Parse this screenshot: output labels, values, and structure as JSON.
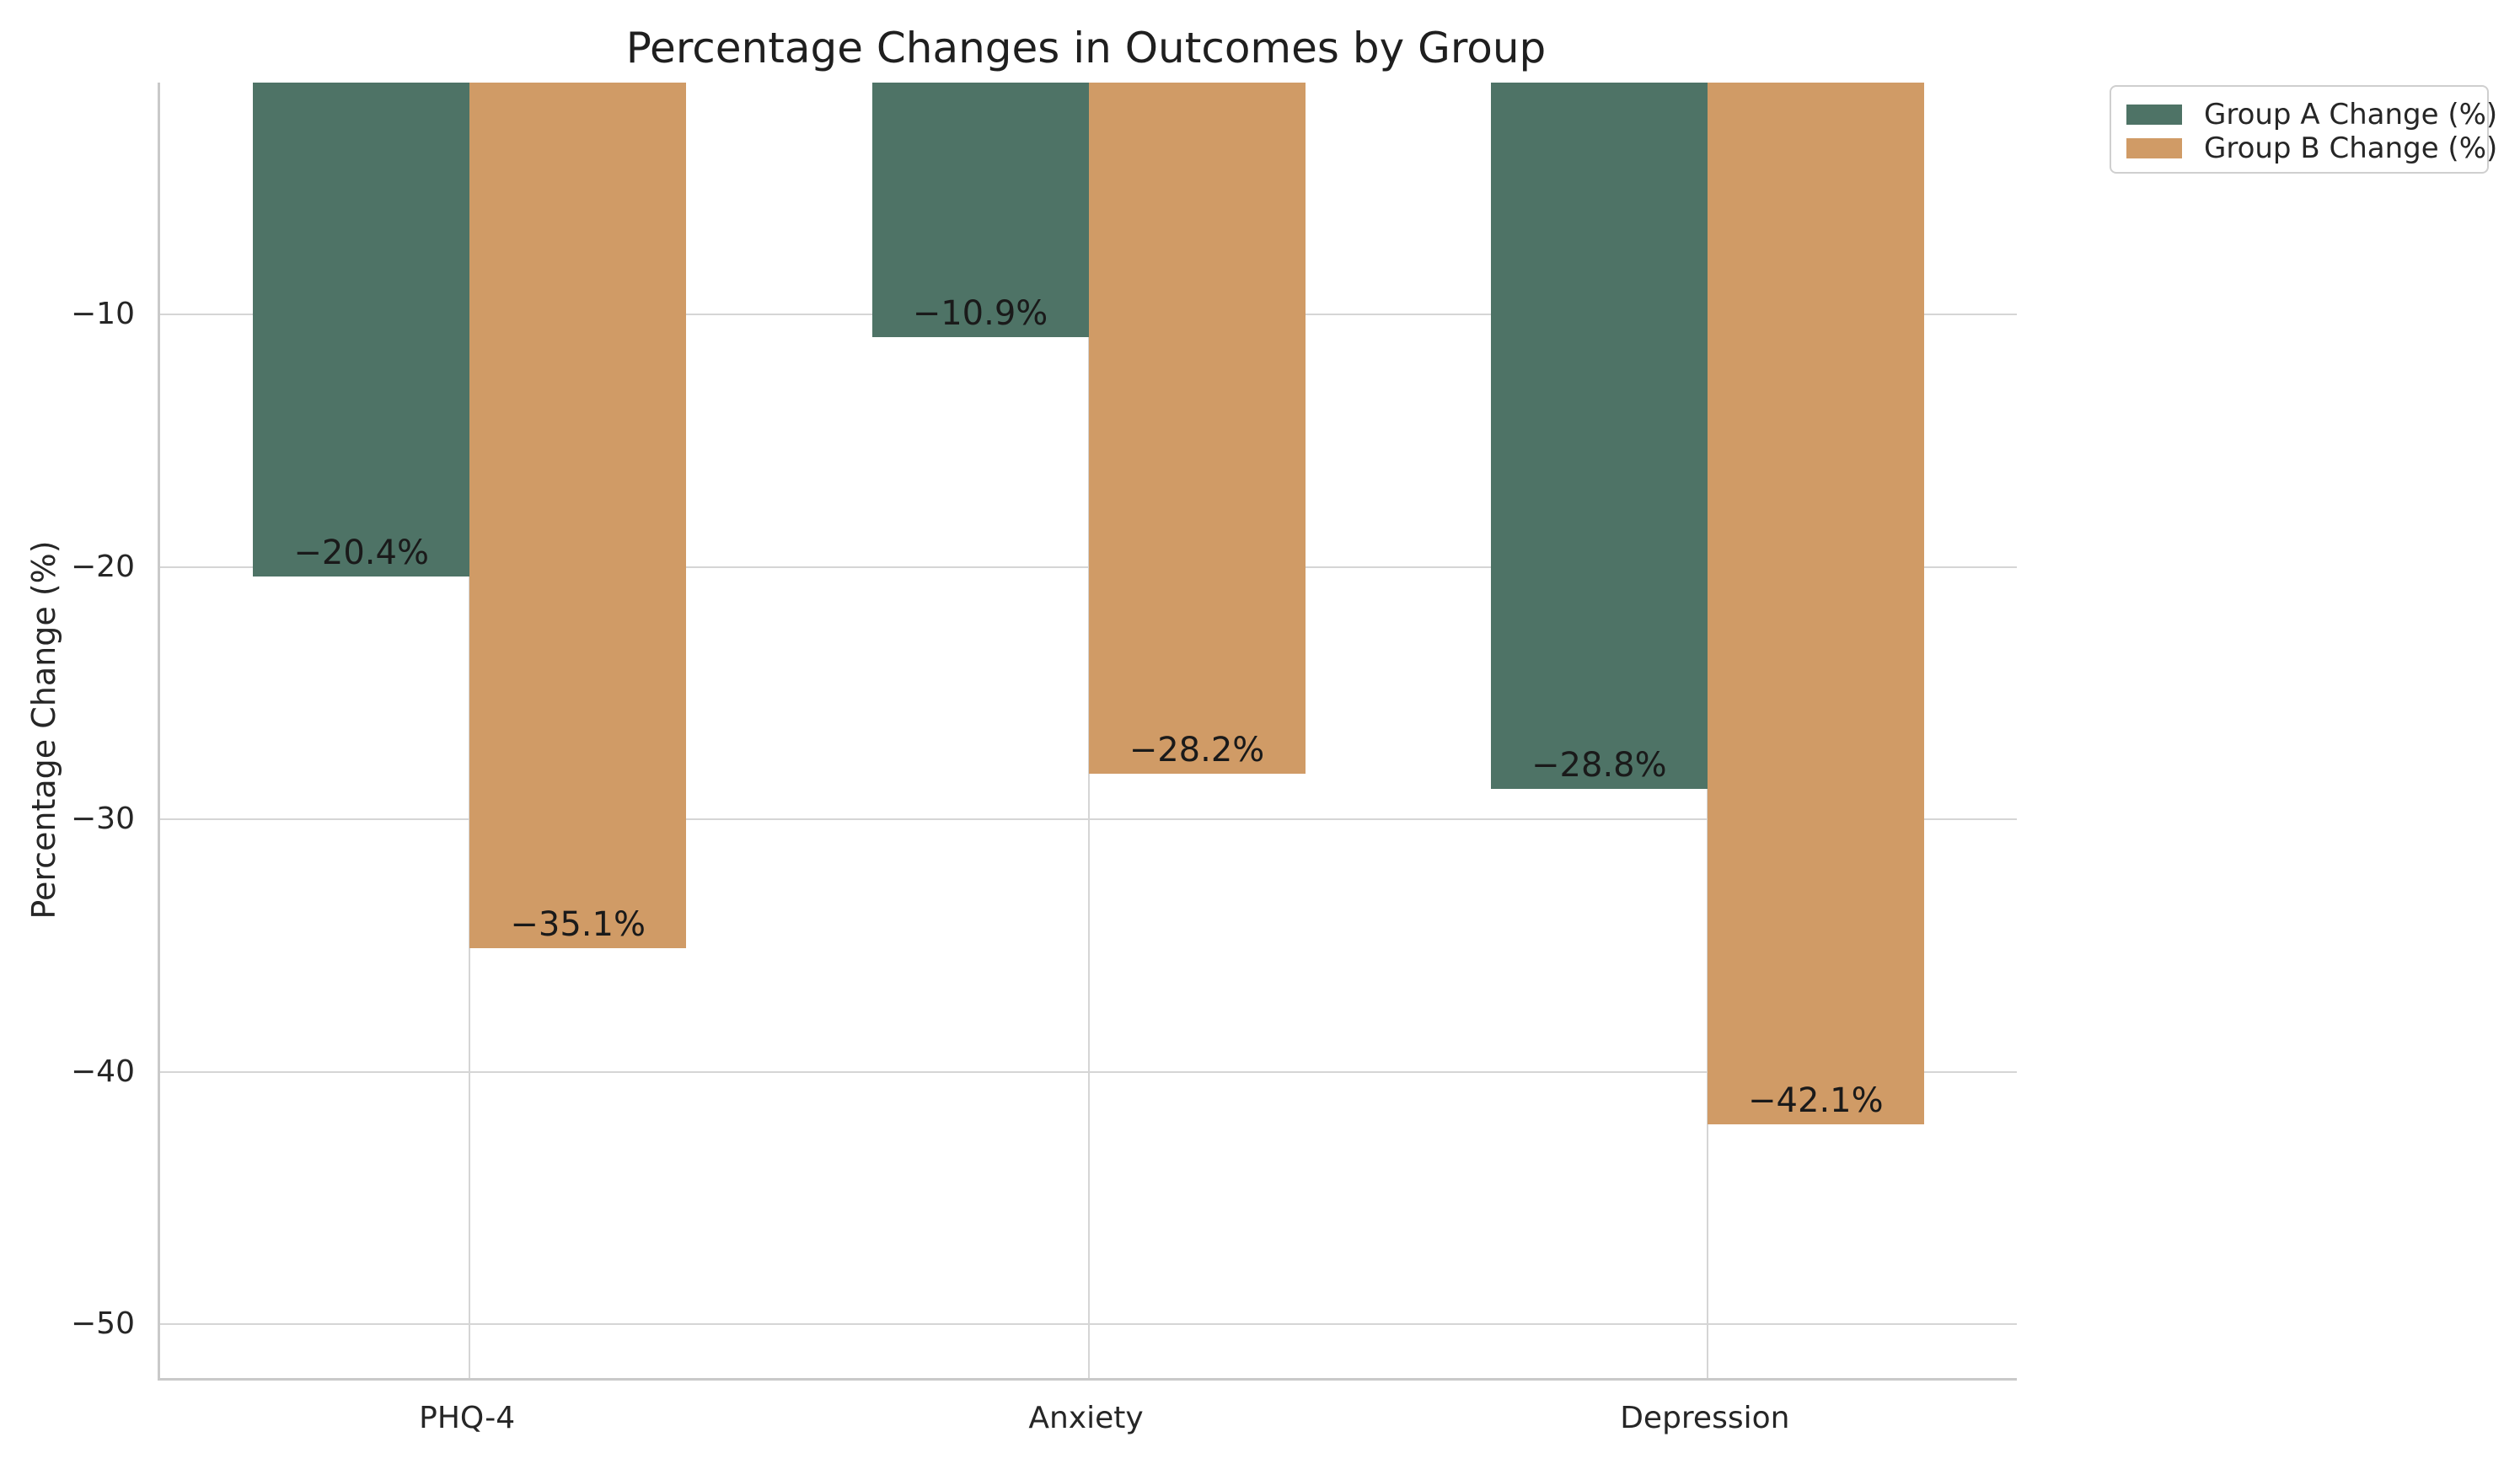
{
  "figure": {
    "title": "Percentage Changes in Outcomes by Group",
    "background_color": "#ffffff"
  },
  "chart_data": {
    "type": "bar",
    "title": "Percentage Changes in Outcomes by Group",
    "categories": [
      "PHQ-4",
      "Anxiety",
      "Depression"
    ],
    "series": [
      {
        "name": "Group A Change (%)",
        "color": "#4e7366",
        "values": [
          -20.4,
          -10.9,
          -28.8
        ],
        "labels": [
          "−20.4%",
          "−10.9%",
          "−28.8%"
        ]
      },
      {
        "name": "Group B Change (%)",
        "color": "#d09b66",
        "values": [
          -35.1,
          -28.2,
          -42.1
        ],
        "labels": [
          "−35.1%",
          "−28.2%",
          "−42.1%"
        ]
      }
    ],
    "xlabel": "",
    "ylabel": "Percentage Change (%)",
    "yticks": [
      -10,
      -20,
      -30,
      -40,
      -50
    ],
    "ytick_labels": [
      "−10",
      "−20",
      "−30",
      "−40",
      "−50"
    ],
    "ylim": [
      -52.1,
      -0.8
    ],
    "grid": true,
    "grid_color": "#d5d5d5",
    "spine_color": "#c9c9c9",
    "bar_label_color": "#1a1a1a",
    "legend": {
      "position": "upper-right-outside",
      "entries": [
        "Group A Change (%)",
        "Group B Change (%)"
      ]
    }
  }
}
